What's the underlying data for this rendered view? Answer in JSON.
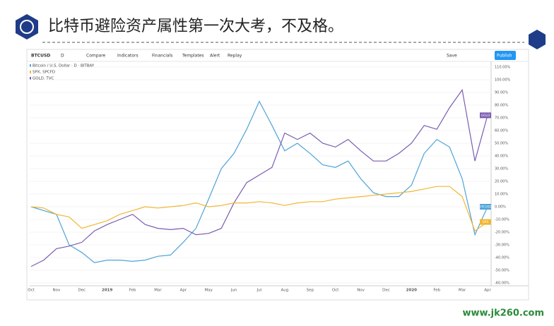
{
  "chart_data": {
    "type": "line",
    "title": "比特币避险资产属性第一次大考，不及格。",
    "watermark": "www.jk260.com",
    "toolbar": [
      "BTCUSD",
      "D",
      "Compare",
      "Indicators",
      "Financials",
      "Templates",
      "Alert",
      "Replay",
      "Save",
      "Publish"
    ],
    "info_lines": [
      "Bitcoin / U.S. Dollar · D · BITBAY",
      "SPX, SPCFD",
      "GOLD, TVC"
    ],
    "categories": [
      "Oct",
      null,
      "Nov",
      null,
      "Dec",
      null,
      "2019",
      null,
      "Feb",
      null,
      "Mar",
      null,
      "Apr",
      null,
      "May",
      null,
      "Jun",
      null,
      "Jul",
      null,
      "Aug",
      null,
      "Sep",
      null,
      "Oct",
      null,
      "Nov",
      null,
      "Dec",
      null,
      "2020",
      null,
      "Feb",
      null,
      "Mar",
      null,
      "Apr"
    ],
    "series": [
      {
        "name": "BTCUSD",
        "color": "#4fa3d8",
        "values": [
          0,
          -3,
          -6,
          -30,
          -36,
          -44,
          -42,
          -42,
          -43,
          -42,
          -39,
          -38,
          -28,
          -17,
          6,
          30,
          42,
          61,
          83,
          64,
          44,
          50,
          42,
          33,
          31,
          36,
          22,
          11,
          8,
          8,
          17,
          42,
          53,
          47,
          22,
          -22,
          0
        ]
      },
      {
        "name": "GOLD",
        "color": "#7a5cb0",
        "values": [
          -47,
          -42,
          -33,
          -31,
          -28,
          -19,
          -14,
          -10,
          -6,
          -14,
          -17,
          -18,
          -17,
          -22,
          -21,
          -17,
          3,
          19,
          25,
          31,
          58,
          53,
          58,
          50,
          47,
          53,
          44,
          36,
          36,
          42,
          50,
          64,
          61,
          78,
          92,
          36,
          72
        ]
      },
      {
        "name": "SPX",
        "color": "#f2b632",
        "values": [
          0,
          -1,
          -6,
          -8,
          -17,
          -14,
          -11,
          -6,
          -3,
          0,
          -1,
          0,
          1,
          3,
          0,
          1,
          3,
          3,
          4,
          3,
          1,
          3,
          4,
          4,
          6,
          7,
          8,
          9,
          10,
          11,
          12,
          14,
          16,
          16,
          8,
          -19,
          -12
        ]
      }
    ],
    "ylim": [
      -65,
      115
    ],
    "yticks": [
      {
        "value": -60,
        "label": "-60.00%"
      },
      {
        "value": -50,
        "label": "-50.00%"
      },
      {
        "value": -40,
        "label": "-40.00%"
      },
      {
        "value": -30,
        "label": "-30.00%"
      },
      {
        "value": -20,
        "label": "-20.00%"
      },
      {
        "value": -10,
        "label": "-10.00%"
      },
      {
        "value": 0,
        "label": "0.00%"
      },
      {
        "value": 10,
        "label": "10.00%"
      },
      {
        "value": 20,
        "label": "20.00%"
      },
      {
        "value": 30,
        "label": "30.00%"
      },
      {
        "value": 40,
        "label": "40.00%"
      },
      {
        "value": 50,
        "label": "50.00%"
      },
      {
        "value": 60,
        "label": "60.00%"
      },
      {
        "value": 70,
        "label": "70.00%"
      },
      {
        "value": 80,
        "label": "80.00%"
      },
      {
        "value": 90,
        "label": "90.00%"
      },
      {
        "value": 100,
        "label": "100.00%"
      },
      {
        "value": 110,
        "label": "110.00%"
      }
    ],
    "grid": true
  }
}
